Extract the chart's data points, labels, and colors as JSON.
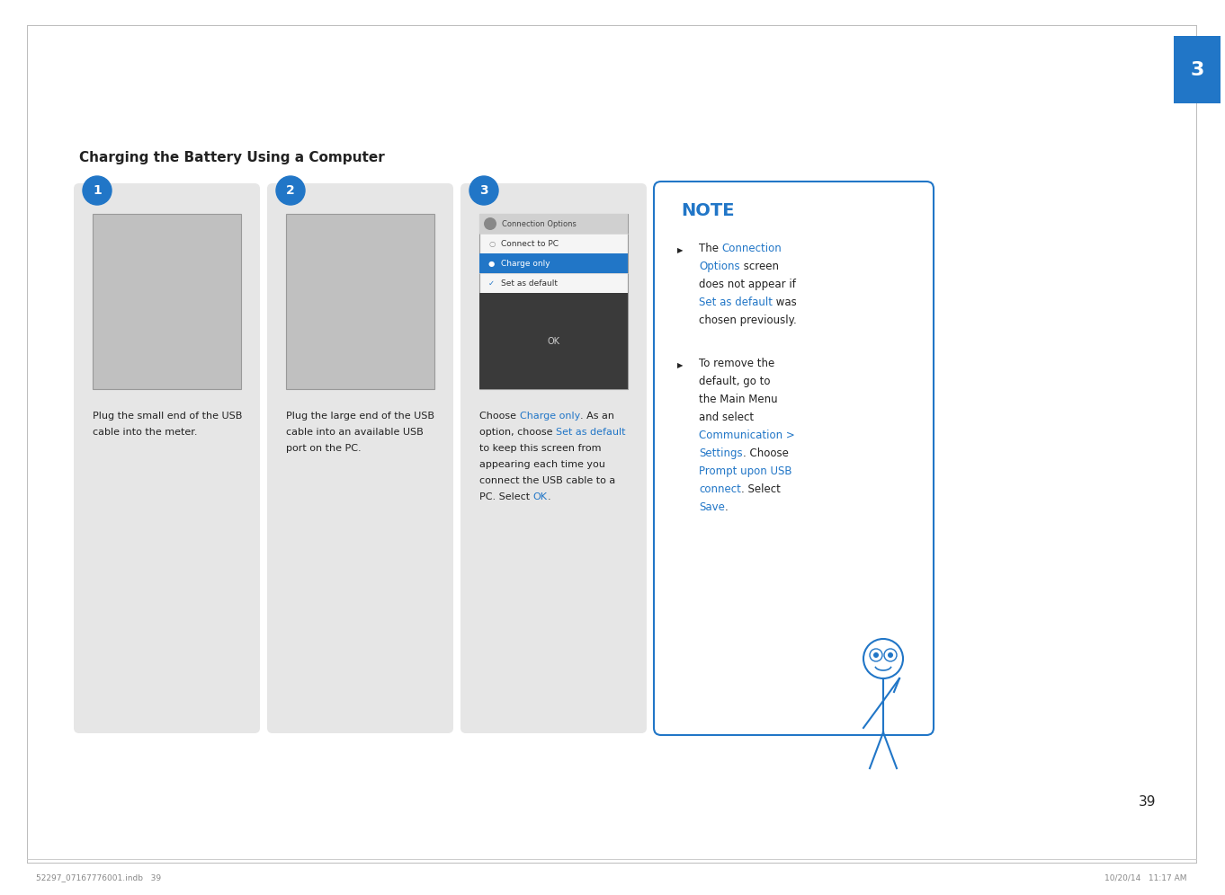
{
  "page_bg": "#ffffff",
  "title": "Charging the Battery Using a Computer",
  "blue_color": "#2176c7",
  "black_color": "#222222",
  "gray_color": "#555555",
  "step_bg": "#e6e6e6",
  "note_border_color": "#2176c7",
  "page_num": "39",
  "tab_color": "#2176c7",
  "chapter_num": "3",
  "footer_text_left": "52297_07167776001.indb   39",
  "footer_text_right": "10/20/14   11:17 AM",
  "screen_header_bg": "#d0d0d0",
  "screen_selected_bg": "#2176c7",
  "screen_ok_bg": "#3a3a3a",
  "screen_menu": [
    "Connection Options",
    "Connect to PC",
    "Charge only",
    "Set as default"
  ],
  "steps": [
    {
      "number": "1",
      "caption_lines": [
        {
          "text": "Plug the small end of the USB",
          "color": "#222222"
        },
        {
          "text": "cable into the meter.",
          "color": "#222222"
        }
      ]
    },
    {
      "number": "2",
      "caption_lines": [
        {
          "text": "Plug the large end of the USB",
          "color": "#222222"
        },
        {
          "text": "cable into an available USB",
          "color": "#222222"
        },
        {
          "text": "port on the PC.",
          "color": "#222222"
        }
      ]
    },
    {
      "number": "3",
      "caption_lines": [
        [
          {
            "text": "Choose ",
            "color": "#222222"
          },
          {
            "text": "Charge only",
            "color": "#2176c7"
          },
          {
            "text": ". As an",
            "color": "#222222"
          }
        ],
        [
          {
            "text": "option, choose ",
            "color": "#222222"
          },
          {
            "text": "Set as default",
            "color": "#2176c7"
          }
        ],
        [
          {
            "text": "to keep this screen from",
            "color": "#222222"
          }
        ],
        [
          {
            "text": "appearing each time you",
            "color": "#222222"
          }
        ],
        [
          {
            "text": "connect the USB cable to a",
            "color": "#222222"
          }
        ],
        [
          {
            "text": "PC. Select ",
            "color": "#222222"
          },
          {
            "text": "OK",
            "color": "#2176c7"
          },
          {
            "text": ".",
            "color": "#222222"
          }
        ]
      ]
    }
  ],
  "note_lines_b1": [
    [
      {
        "text": "The ",
        "color": "#222222"
      },
      {
        "text": "Connection",
        "color": "#2176c7"
      }
    ],
    [
      {
        "text": "Options",
        "color": "#2176c7"
      },
      {
        "text": " screen",
        "color": "#222222"
      }
    ],
    [
      {
        "text": "does not appear if",
        "color": "#222222"
      }
    ],
    [
      {
        "text": "Set as default",
        "color": "#2176c7"
      },
      {
        "text": " was",
        "color": "#222222"
      }
    ],
    [
      {
        "text": "chosen previously.",
        "color": "#222222"
      }
    ]
  ],
  "note_lines_b2": [
    [
      {
        "text": "To remove the",
        "color": "#222222"
      }
    ],
    [
      {
        "text": "default, go to",
        "color": "#222222"
      }
    ],
    [
      {
        "text": "the Main Menu",
        "color": "#222222"
      }
    ],
    [
      {
        "text": "and select",
        "color": "#222222"
      }
    ],
    [
      {
        "text": "Communication >",
        "color": "#2176c7"
      }
    ],
    [
      {
        "text": "Settings",
        "color": "#2176c7"
      },
      {
        "text": ". Choose",
        "color": "#222222"
      }
    ],
    [
      {
        "text": "Prompt upon USB",
        "color": "#2176c7"
      }
    ],
    [
      {
        "text": "connect",
        "color": "#2176c7"
      },
      {
        "text": ". Select",
        "color": "#222222"
      }
    ],
    [
      {
        "text": "Save",
        "color": "#2176c7"
      },
      {
        "text": ".",
        "color": "#222222"
      }
    ]
  ]
}
